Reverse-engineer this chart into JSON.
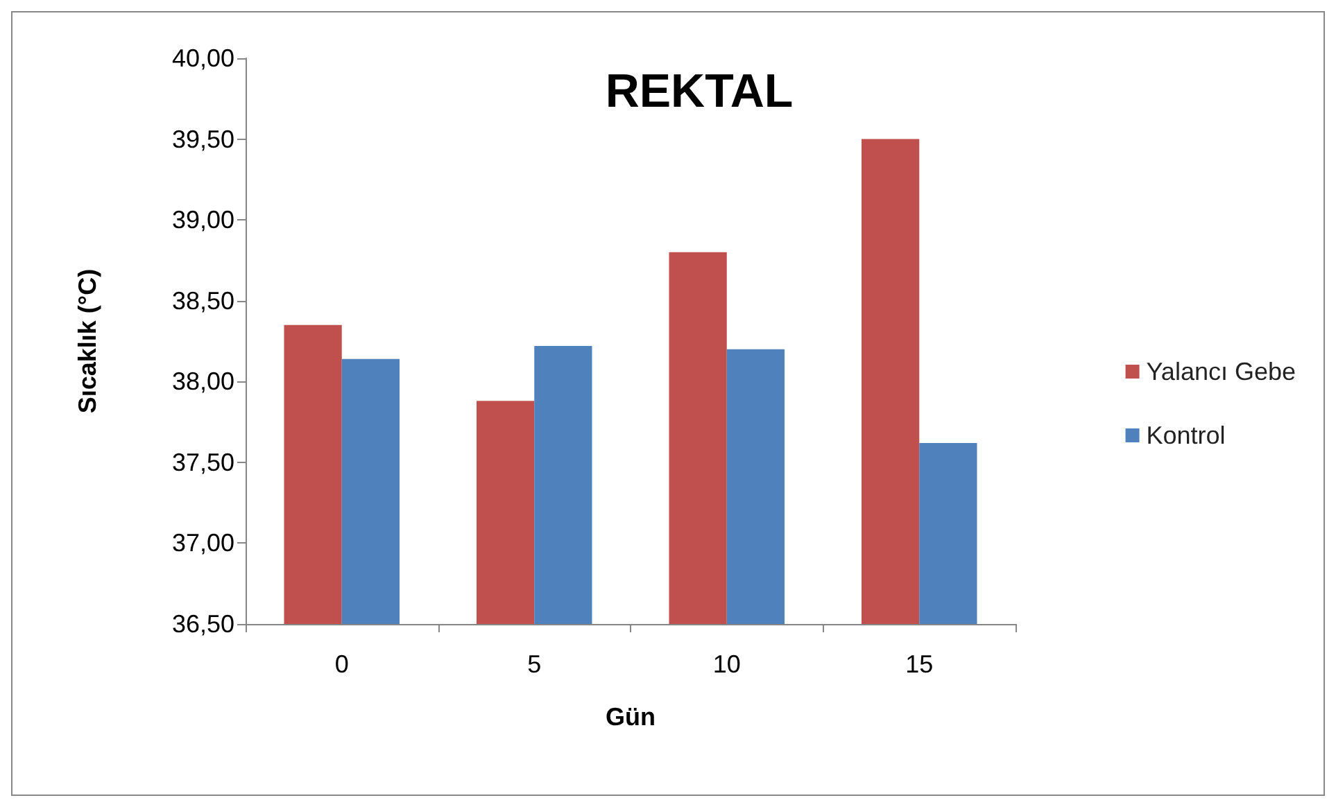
{
  "chart_data": {
    "type": "bar",
    "title": "REKTAL",
    "xlabel": "Gün",
    "ylabel": "Sıcaklık (°C)",
    "categories": [
      "0",
      "5",
      "10",
      "15"
    ],
    "series": [
      {
        "name": "Yalancı Gebe",
        "color": "#c0504d",
        "values": [
          38.35,
          37.88,
          38.8,
          39.5
        ]
      },
      {
        "name": "Kontrol",
        "color": "#4f81bd",
        "values": [
          38.14,
          38.22,
          38.2,
          37.62
        ]
      }
    ],
    "ylim": [
      36.5,
      40
    ],
    "yticks": [
      {
        "value": 36.5,
        "label": "36,50"
      },
      {
        "value": 37,
        "label": "37,00"
      },
      {
        "value": 37.5,
        "label": "37,50"
      },
      {
        "value": 38,
        "label": "38,00"
      },
      {
        "value": 38.5,
        "label": "38,50"
      },
      {
        "value": 39,
        "label": "39,00"
      },
      {
        "value": 39.5,
        "label": "39,50"
      },
      {
        "value": 40,
        "label": "40,00"
      }
    ],
    "grid": false,
    "legend": "right"
  }
}
